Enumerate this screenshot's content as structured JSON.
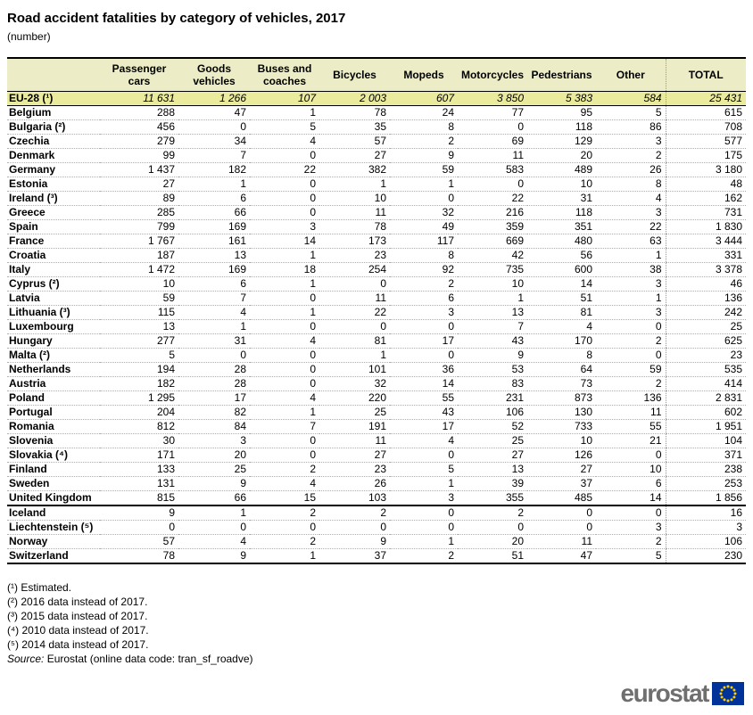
{
  "title": "Road accident fatalities by category of vehicles, 2017",
  "subtitle": "(number)",
  "chart_data": {
    "type": "table",
    "title": "Road accident fatalities by category of vehicles, 2017",
    "unit": "number",
    "columns": [
      "Passenger cars",
      "Goods vehicles",
      "Buses and coaches",
      "Bicycles",
      "Mopeds",
      "Motorcycles",
      "Pedestrians",
      "Other",
      "TOTAL"
    ],
    "aggregate_row": {
      "label": "EU-28",
      "fn": "¹",
      "values": [
        "11 631",
        "1 266",
        "107",
        "2 003",
        "607",
        "3 850",
        "5 383",
        "584",
        "25 431"
      ]
    },
    "country_rows": [
      {
        "label": "Belgium",
        "fn": null,
        "values": [
          "288",
          "47",
          "1",
          "78",
          "24",
          "77",
          "95",
          "5",
          "615"
        ]
      },
      {
        "label": "Bulgaria",
        "fn": "²",
        "values": [
          "456",
          "0",
          "5",
          "35",
          "8",
          "0",
          "118",
          "86",
          "708"
        ]
      },
      {
        "label": "Czechia",
        "fn": null,
        "values": [
          "279",
          "34",
          "4",
          "57",
          "2",
          "69",
          "129",
          "3",
          "577"
        ]
      },
      {
        "label": "Denmark",
        "fn": null,
        "values": [
          "99",
          "7",
          "0",
          "27",
          "9",
          "11",
          "20",
          "2",
          "175"
        ]
      },
      {
        "label": "Germany",
        "fn": null,
        "values": [
          "1 437",
          "182",
          "22",
          "382",
          "59",
          "583",
          "489",
          "26",
          "3 180"
        ]
      },
      {
        "label": "Estonia",
        "fn": null,
        "values": [
          "27",
          "1",
          "0",
          "1",
          "1",
          "0",
          "10",
          "8",
          "48"
        ]
      },
      {
        "label": "Ireland",
        "fn": "³",
        "values": [
          "89",
          "6",
          "0",
          "10",
          "0",
          "22",
          "31",
          "4",
          "162"
        ]
      },
      {
        "label": "Greece",
        "fn": null,
        "values": [
          "285",
          "66",
          "0",
          "11",
          "32",
          "216",
          "118",
          "3",
          "731"
        ]
      },
      {
        "label": "Spain",
        "fn": null,
        "values": [
          "799",
          "169",
          "3",
          "78",
          "49",
          "359",
          "351",
          "22",
          "1 830"
        ]
      },
      {
        "label": "France",
        "fn": null,
        "values": [
          "1 767",
          "161",
          "14",
          "173",
          "117",
          "669",
          "480",
          "63",
          "3 444"
        ]
      },
      {
        "label": "Croatia",
        "fn": null,
        "values": [
          "187",
          "13",
          "1",
          "23",
          "8",
          "42",
          "56",
          "1",
          "331"
        ]
      },
      {
        "label": "Italy",
        "fn": null,
        "values": [
          "1 472",
          "169",
          "18",
          "254",
          "92",
          "735",
          "600",
          "38",
          "3 378"
        ]
      },
      {
        "label": "Cyprus",
        "fn": "²",
        "values": [
          "10",
          "6",
          "1",
          "0",
          "2",
          "10",
          "14",
          "3",
          "46"
        ]
      },
      {
        "label": "Latvia",
        "fn": null,
        "values": [
          "59",
          "7",
          "0",
          "11",
          "6",
          "1",
          "51",
          "1",
          "136"
        ]
      },
      {
        "label": "Lithuania",
        "fn": "³",
        "values": [
          "115",
          "4",
          "1",
          "22",
          "3",
          "13",
          "81",
          "3",
          "242"
        ]
      },
      {
        "label": "Luxembourg",
        "fn": null,
        "values": [
          "13",
          "1",
          "0",
          "0",
          "0",
          "7",
          "4",
          "0",
          "25"
        ]
      },
      {
        "label": "Hungary",
        "fn": null,
        "values": [
          "277",
          "31",
          "4",
          "81",
          "17",
          "43",
          "170",
          "2",
          "625"
        ]
      },
      {
        "label": "Malta",
        "fn": "²",
        "values": [
          "5",
          "0",
          "0",
          "1",
          "0",
          "9",
          "8",
          "0",
          "23"
        ]
      },
      {
        "label": "Netherlands",
        "fn": null,
        "values": [
          "194",
          "28",
          "0",
          "101",
          "36",
          "53",
          "64",
          "59",
          "535"
        ]
      },
      {
        "label": "Austria",
        "fn": null,
        "values": [
          "182",
          "28",
          "0",
          "32",
          "14",
          "83",
          "73",
          "2",
          "414"
        ]
      },
      {
        "label": "Poland",
        "fn": null,
        "values": [
          "1 295",
          "17",
          "4",
          "220",
          "55",
          "231",
          "873",
          "136",
          "2 831"
        ]
      },
      {
        "label": "Portugal",
        "fn": null,
        "values": [
          "204",
          "82",
          "1",
          "25",
          "43",
          "106",
          "130",
          "11",
          "602"
        ]
      },
      {
        "label": "Romania",
        "fn": null,
        "values": [
          "812",
          "84",
          "7",
          "191",
          "17",
          "52",
          "733",
          "55",
          "1 951"
        ]
      },
      {
        "label": "Slovenia",
        "fn": null,
        "values": [
          "30",
          "3",
          "0",
          "11",
          "4",
          "25",
          "10",
          "21",
          "104"
        ]
      },
      {
        "label": "Slovakia",
        "fn": "⁴",
        "values": [
          "171",
          "20",
          "0",
          "27",
          "0",
          "27",
          "126",
          "0",
          "371"
        ]
      },
      {
        "label": "Finland",
        "fn": null,
        "values": [
          "133",
          "25",
          "2",
          "23",
          "5",
          "13",
          "27",
          "10",
          "238"
        ]
      },
      {
        "label": "Sweden",
        "fn": null,
        "values": [
          "131",
          "9",
          "4",
          "26",
          "1",
          "39",
          "37",
          "6",
          "253"
        ]
      },
      {
        "label": "United Kingdom",
        "fn": null,
        "values": [
          "815",
          "66",
          "15",
          "103",
          "3",
          "355",
          "485",
          "14",
          "1 856"
        ]
      }
    ],
    "efta_rows": [
      {
        "label": "Iceland",
        "fn": null,
        "values": [
          "9",
          "1",
          "2",
          "2",
          "0",
          "2",
          "0",
          "0",
          "16"
        ]
      },
      {
        "label": "Liechtenstein",
        "fn": "⁵",
        "values": [
          "0",
          "0",
          "0",
          "0",
          "0",
          "0",
          "0",
          "3",
          "3"
        ]
      },
      {
        "label": "Norway",
        "fn": null,
        "values": [
          "57",
          "4",
          "2",
          "9",
          "1",
          "20",
          "11",
          "2",
          "106"
        ]
      },
      {
        "label": "Switzerland",
        "fn": null,
        "values": [
          "78",
          "9",
          "1",
          "37",
          "2",
          "51",
          "47",
          "5",
          "230"
        ]
      }
    ]
  },
  "footnotes": [
    {
      "marker": "¹",
      "text": "Estimated."
    },
    {
      "marker": "²",
      "text": "2016 data instead of 2017."
    },
    {
      "marker": "³",
      "text": "2015 data instead of 2017."
    },
    {
      "marker": "⁴",
      "text": "2010 data instead of 2017."
    },
    {
      "marker": "⁵",
      "text": "2014 data instead of 2017."
    }
  ],
  "source": {
    "label": "Source:",
    "text": "Eurostat (online data code: tran_sf_roadve)"
  },
  "logo": {
    "text": "eurostat"
  },
  "colors": {
    "header_bg": "#ECEDC6",
    "eu_row_bg": "#EBEB9E",
    "border": "#000000",
    "dotted_separator": "#B0B0B0",
    "logo_gray": "#6F6F6F",
    "eu_flag_blue": "#003399",
    "star_yellow": "#FFCC00"
  }
}
